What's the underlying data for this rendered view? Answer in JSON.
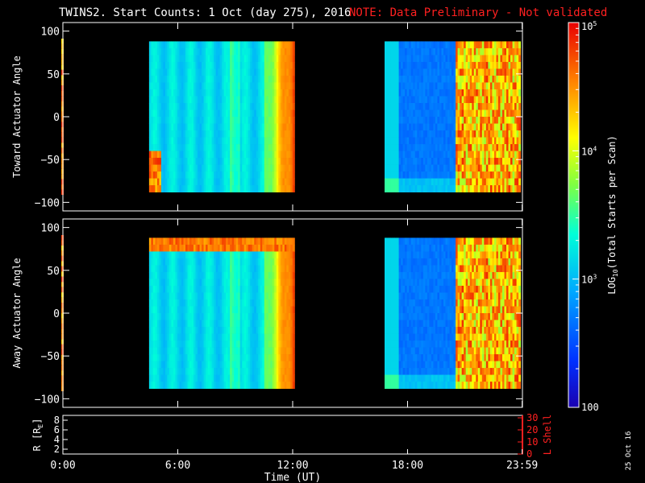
{
  "title": {
    "main": "TWINS2. Start Counts:  1 Oct (day 275), 2016",
    "note": "NOTE: Data Preliminary - Not validated"
  },
  "footer_date": "25 Oct 16",
  "colors": {
    "background": "#000000",
    "axes": "#ffffff",
    "note": "#ff2020",
    "lshell_axis": "#ff2020"
  },
  "chart_data": [
    {
      "type": "heatmap",
      "name": "toward-panel",
      "ylabel": "Toward Actuator Angle",
      "ylim": [
        -110,
        110
      ],
      "yticks": [
        100,
        50,
        0,
        -50,
        -100
      ],
      "xlim": [
        0,
        24
      ],
      "data_blocks": [
        {
          "t_start": 4.5,
          "t_end": 12.1,
          "angle_min": -88,
          "angle_max": 88
        },
        {
          "t_start": 16.8,
          "t_end": 23.9,
          "angle_min": -88,
          "angle_max": 88
        }
      ]
    },
    {
      "type": "heatmap",
      "name": "away-panel",
      "ylabel": "Away Actuator Angle",
      "ylim": [
        -110,
        110
      ],
      "yticks": [
        100,
        50,
        0,
        -50,
        -100
      ],
      "xlim": [
        0,
        24
      ],
      "data_blocks": [
        {
          "t_start": 4.5,
          "t_end": 12.1,
          "angle_min": -88,
          "angle_max": 88
        },
        {
          "t_start": 16.8,
          "t_end": 23.9,
          "angle_min": -88,
          "angle_max": 88
        }
      ]
    },
    {
      "type": "line",
      "name": "orbit-panel",
      "ylabel_left": "R [R",
      "ylabel_left_sub": "E",
      "ylabel_left_end": "]",
      "yticks_left": [
        8,
        6,
        4,
        2
      ],
      "ylim_left": [
        1,
        9
      ],
      "ylabel_right": "L Shell",
      "yticks_right": [
        30,
        20,
        10,
        0
      ],
      "ylim_right": [
        0,
        32
      ],
      "xlabel": "Time (UT)",
      "xticks": [
        "0:00",
        "6:00",
        "12:00",
        "18:00",
        "23:59"
      ],
      "xtick_values": [
        0,
        6,
        12,
        18,
        23.983
      ]
    }
  ],
  "colorbar": {
    "label_main": "LOG",
    "label_sub": "10",
    "label_rest": "(Total Starts per Scan)",
    "scale": "log",
    "range": [
      100,
      100000
    ],
    "major_ticks": [
      {
        "value": 100000,
        "base": "10",
        "exp": "5"
      },
      {
        "value": 10000,
        "base": "10",
        "exp": "4"
      },
      {
        "value": 1000,
        "base": "10",
        "exp": "3"
      },
      {
        "value": 100,
        "label": "100"
      }
    ]
  }
}
